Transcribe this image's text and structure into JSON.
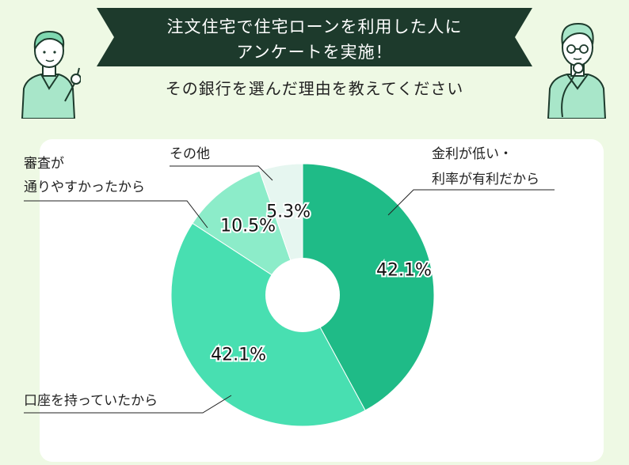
{
  "header": {
    "line1": "注文住宅で住宅ローンを利用した人に",
    "line2": "アンケートを実施！",
    "subtitle": "その銀行を選んだ理由を教えてください"
  },
  "chart_data": {
    "type": "pie",
    "donut": true,
    "slices": [
      {
        "label_lines": [
          "金利が低い・",
          "利率が有利だから"
        ],
        "value": 42.1,
        "display": "42.1%",
        "color": "#1fbb87"
      },
      {
        "label_lines": [
          "口座を持っていたから"
        ],
        "value": 42.1,
        "display": "42.1%",
        "color": "#48dfb1"
      },
      {
        "label_lines": [
          "審査が",
          "通りやすかったから"
        ],
        "value": 10.5,
        "display": "10.5%",
        "color": "#8cecc9"
      },
      {
        "label_lines": [
          "その他"
        ],
        "value": 5.3,
        "display": "5.3%",
        "color": "#e6f6f0"
      }
    ]
  },
  "icons": {
    "left": "person-pointing-icon",
    "right": "person-thinking-icon"
  }
}
